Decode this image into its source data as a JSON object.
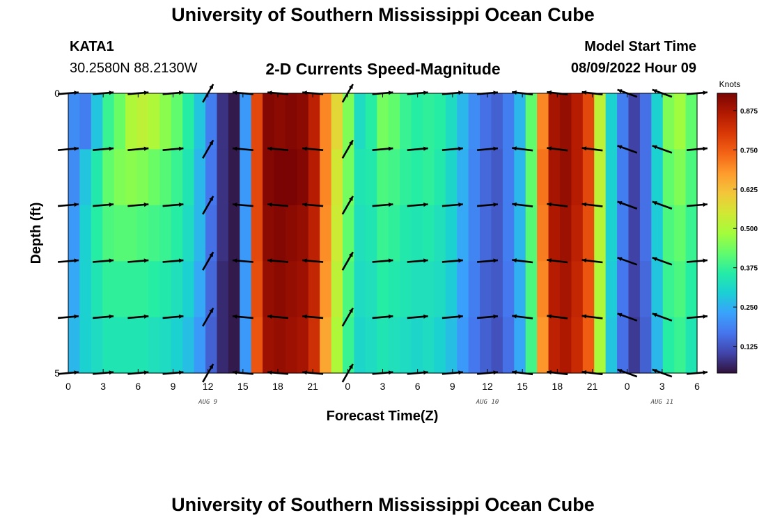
{
  "header": {
    "title": "University of Southern Mississippi Ocean Cube",
    "station": "KATA1",
    "coords": "30.2580N  88.2130W",
    "subtitle": "2-D Currents Speed-Magnitude",
    "model_start_label": "Model Start Time",
    "model_start_value": "08/09/2022 Hour 09"
  },
  "footer": {
    "title": "University of Southern Mississippi Ocean Cube"
  },
  "colors": {
    "colormap": [
      "#30123b",
      "#4145ab",
      "#4675ed",
      "#39a2fc",
      "#1bcfd4",
      "#24eca6",
      "#61fc6c",
      "#a4fc3b",
      "#d1e834",
      "#f3c63a",
      "#fe9b2d",
      "#f36315",
      "#d93806",
      "#b11901",
      "#7a0403"
    ],
    "arrow": "#000000"
  },
  "chart_data": {
    "type": "heatmap",
    "title": "2-D Currents Speed-Magnitude",
    "xlabel": "Forecast Time(Z)",
    "ylabel": "Depth (ft)",
    "x_tick_labels": [
      "0",
      "3",
      "6",
      "9",
      "12",
      "15",
      "18",
      "21",
      "0",
      "3",
      "6",
      "9",
      "12",
      "15",
      "18",
      "21",
      "0",
      "3",
      "6"
    ],
    "date_labels": [
      {
        "text": "AUG 9",
        "hour": 12
      },
      {
        "text": "AUG 10",
        "hour": 36
      },
      {
        "text": "AUG 11",
        "hour": 51
      }
    ],
    "xlim_hours": [
      0,
      54
    ],
    "y_tick_labels": [
      "0",
      "5"
    ],
    "ylim": [
      0,
      5
    ],
    "colorbar": {
      "label": "Knots",
      "range": [
        0.04,
        0.93
      ],
      "ticks": [
        0.125,
        0.25,
        0.375,
        0.5,
        0.625,
        0.75,
        0.875
      ],
      "tick_labels": [
        "0.125",
        "0.250",
        "0.375",
        "0.500",
        "0.625",
        "0.750",
        "0.875"
      ]
    },
    "speed_hourly_by_depth_layer": [
      [
        0.2,
        0.18,
        0.28,
        0.38,
        0.43,
        0.5,
        0.52,
        0.5,
        0.46,
        0.42,
        0.36,
        0.28,
        0.18,
        0.08,
        0.05,
        0.22,
        0.78,
        0.92,
        0.91,
        0.92,
        0.91,
        0.85,
        0.7,
        0.58,
        0.45,
        0.32,
        0.36,
        0.44,
        0.42,
        0.38,
        0.36,
        0.37,
        0.36,
        0.32,
        0.26,
        0.2,
        0.16,
        0.14,
        0.18,
        0.26,
        0.42,
        0.7,
        0.88,
        0.9,
        0.86,
        0.78,
        0.52,
        0.3,
        0.18,
        0.1,
        0.16,
        0.3,
        0.45,
        0.48,
        0.42
      ],
      [
        0.2,
        0.28,
        0.35,
        0.42,
        0.45,
        0.46,
        0.45,
        0.43,
        0.41,
        0.38,
        0.34,
        0.26,
        0.17,
        0.08,
        0.05,
        0.22,
        0.78,
        0.92,
        0.93,
        0.93,
        0.92,
        0.86,
        0.7,
        0.55,
        0.44,
        0.34,
        0.35,
        0.4,
        0.39,
        0.37,
        0.36,
        0.37,
        0.35,
        0.31,
        0.25,
        0.19,
        0.15,
        0.13,
        0.18,
        0.26,
        0.42,
        0.72,
        0.88,
        0.9,
        0.86,
        0.78,
        0.52,
        0.3,
        0.18,
        0.1,
        0.16,
        0.3,
        0.42,
        0.45,
        0.4
      ],
      [
        0.22,
        0.3,
        0.36,
        0.4,
        0.41,
        0.41,
        0.4,
        0.39,
        0.38,
        0.36,
        0.32,
        0.26,
        0.16,
        0.08,
        0.05,
        0.22,
        0.78,
        0.91,
        0.92,
        0.91,
        0.9,
        0.85,
        0.69,
        0.54,
        0.42,
        0.33,
        0.34,
        0.38,
        0.37,
        0.35,
        0.34,
        0.35,
        0.33,
        0.3,
        0.24,
        0.19,
        0.15,
        0.13,
        0.18,
        0.26,
        0.41,
        0.71,
        0.87,
        0.89,
        0.85,
        0.77,
        0.51,
        0.3,
        0.18,
        0.1,
        0.16,
        0.29,
        0.4,
        0.42,
        0.38
      ],
      [
        0.24,
        0.3,
        0.34,
        0.37,
        0.37,
        0.37,
        0.37,
        0.36,
        0.35,
        0.33,
        0.3,
        0.24,
        0.15,
        0.07,
        0.05,
        0.22,
        0.77,
        0.9,
        0.91,
        0.9,
        0.89,
        0.84,
        0.68,
        0.52,
        0.4,
        0.32,
        0.33,
        0.36,
        0.35,
        0.34,
        0.33,
        0.33,
        0.32,
        0.29,
        0.23,
        0.18,
        0.14,
        0.13,
        0.17,
        0.25,
        0.4,
        0.7,
        0.86,
        0.88,
        0.84,
        0.76,
        0.5,
        0.29,
        0.17,
        0.1,
        0.15,
        0.28,
        0.38,
        0.4,
        0.36
      ],
      [
        0.26,
        0.3,
        0.32,
        0.34,
        0.34,
        0.34,
        0.34,
        0.33,
        0.32,
        0.3,
        0.27,
        0.22,
        0.14,
        0.07,
        0.05,
        0.22,
        0.76,
        0.89,
        0.9,
        0.89,
        0.88,
        0.82,
        0.66,
        0.5,
        0.38,
        0.31,
        0.32,
        0.34,
        0.33,
        0.32,
        0.31,
        0.32,
        0.3,
        0.27,
        0.22,
        0.17,
        0.14,
        0.12,
        0.16,
        0.24,
        0.39,
        0.68,
        0.85,
        0.87,
        0.83,
        0.75,
        0.49,
        0.28,
        0.16,
        0.09,
        0.14,
        0.26,
        0.36,
        0.38,
        0.34
      ]
    ]
  }
}
